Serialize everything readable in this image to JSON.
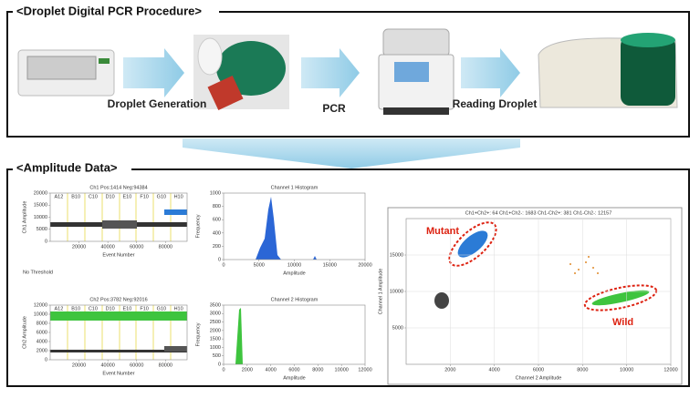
{
  "procedure": {
    "title": "<Droplet Digital PCR Procedure>",
    "steps": [
      "Droplet Generation",
      "PCR",
      "Reading Droplet"
    ]
  },
  "amplitude": {
    "title": "<Amplitude Data>",
    "ch1_amplitude": {
      "title": "Ch1 Pos:1414 Neg:94384",
      "ylabel": "Ch1 Amplitude",
      "xlabel": "Event Number",
      "xlim": [
        0,
        95000
      ],
      "ylim": [
        0,
        20000
      ],
      "xticks": [
        20000,
        40000,
        60000,
        80000
      ],
      "yticks": [
        0,
        5000,
        10000,
        15000,
        20000
      ],
      "wells": [
        "A12",
        "B10",
        "C10",
        "D10",
        "E10",
        "F10",
        "G10",
        "H10"
      ],
      "note": "No Threshold"
    },
    "ch1_histogram": {
      "title": "Channel 1 Histogram",
      "ylabel": "Frequency",
      "xlabel": "Amplitude",
      "xlim": [
        0,
        20000
      ],
      "ylim": [
        0,
        1000
      ],
      "xticks": [
        0,
        5000,
        10000,
        15000,
        20000
      ],
      "yticks": [
        0,
        200,
        400,
        600,
        800,
        1000
      ]
    },
    "ch2_amplitude": {
      "title": "Ch2 Pos:3782 Neg:92016",
      "ylabel": "Ch2 Amplitude",
      "xlabel": "Event Number",
      "xlim": [
        0,
        95000
      ],
      "ylim": [
        0,
        12000
      ],
      "xticks": [
        20000,
        40000,
        60000,
        80000
      ],
      "yticks": [
        0,
        2000,
        4000,
        6000,
        8000,
        10000,
        12000
      ],
      "wells": [
        "A12",
        "B10",
        "C10",
        "D10",
        "E10",
        "F10",
        "G10",
        "H10"
      ]
    },
    "ch2_histogram": {
      "title": "Channel 2 Histogram",
      "ylabel": "Frequency",
      "xlabel": "Amplitude",
      "xlim": [
        0,
        12000
      ],
      "ylim": [
        0,
        3500
      ],
      "xticks": [
        0,
        2000,
        4000,
        6000,
        8000,
        10000,
        12000
      ],
      "yticks": [
        0,
        500,
        1000,
        1500,
        2000,
        2500,
        3000,
        3500
      ]
    },
    "scatter": {
      "title": "Ch1+Ch2+: 64  Ch1+Ch2-: 1683  Ch1-Ch2+: 381  Ch1-Ch2-: 12157",
      "xlabel": "Channel 2 Amplitude",
      "ylabel": "Channel 1 Amplitude",
      "xlim": [
        0,
        12000
      ],
      "ylim": [
        0,
        20000
      ],
      "xticks": [
        2000,
        4000,
        6000,
        8000,
        10000,
        12000
      ],
      "yticks": [
        5000,
        10000,
        15000
      ],
      "annotations": [
        "Mutant",
        "Wild"
      ]
    }
  }
}
